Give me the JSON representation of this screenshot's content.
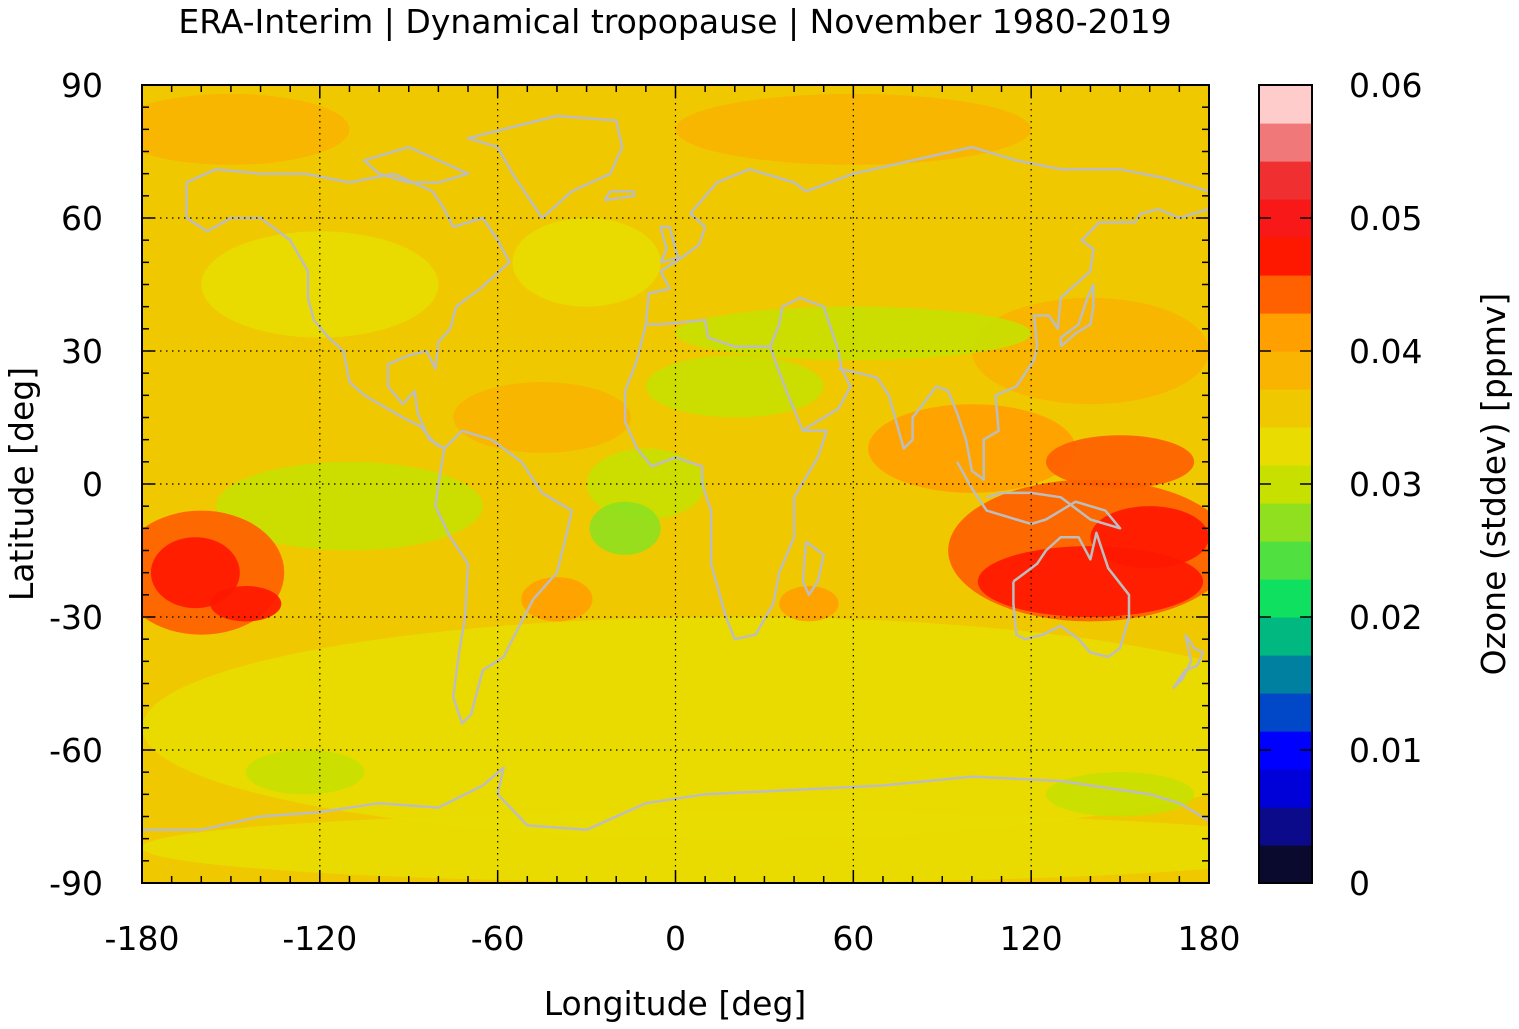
{
  "chart_data": {
    "type": "heatmap",
    "title": "ERA-Interim | Dynamical tropopause | November 1980-2019",
    "xlabel": "Longitude [deg]",
    "ylabel": "Latitude [deg]",
    "xlim": [
      -180,
      180
    ],
    "ylim": [
      -90,
      90
    ],
    "x_ticks": [
      "-180",
      "-120",
      "-60",
      "0",
      "60",
      "120",
      "180"
    ],
    "y_ticks": [
      "-90",
      "-60",
      "-30",
      "0",
      "30",
      "60",
      "90"
    ],
    "x_tick_values": [
      -180,
      -120,
      -60,
      0,
      60,
      120,
      180
    ],
    "y_tick_values": [
      -90,
      -60,
      -30,
      0,
      30,
      60,
      90
    ],
    "grid": true,
    "colorbar": {
      "label": "Ozone (stddev) [ppmv]",
      "range": [
        0,
        0.06
      ],
      "ticks": [
        "0",
        "0.01",
        "0.02",
        "0.03",
        "0.04",
        "0.05",
        "0.06"
      ],
      "tick_values": [
        0,
        0.01,
        0.02,
        0.03,
        0.04,
        0.05,
        0.06
      ],
      "colors": [
        "#0a0a2e",
        "#0a0a8a",
        "#0000d8",
        "#0000ff",
        "#0048c8",
        "#0080a0",
        "#00b880",
        "#10e060",
        "#50e040",
        "#90e020",
        "#c8e000",
        "#e8dc00",
        "#f0c800",
        "#f8b400",
        "#ffa000",
        "#ff6000",
        "#ff1800",
        "#f81818",
        "#f03030",
        "#f07878",
        "#ffcccc"
      ]
    },
    "field": {
      "background_value": 0.036,
      "regions": [
        {
          "lon": -162,
          "lat": -20,
          "rlon": 15,
          "rlat": 8,
          "value": 0.048
        },
        {
          "lon": -145,
          "lat": -27,
          "rlon": 12,
          "rlat": 4,
          "value": 0.047
        },
        {
          "lon": -160,
          "lat": -20,
          "rlon": 28,
          "rlat": 14,
          "value": 0.044
        },
        {
          "lon": 140,
          "lat": -22,
          "rlon": 38,
          "rlat": 8,
          "value": 0.048
        },
        {
          "lon": 160,
          "lat": -12,
          "rlon": 20,
          "rlat": 7,
          "value": 0.046
        },
        {
          "lon": 140,
          "lat": -15,
          "rlon": 48,
          "rlat": 16,
          "value": 0.044
        },
        {
          "lon": 150,
          "lat": 5,
          "rlon": 25,
          "rlat": 6,
          "value": 0.043
        },
        {
          "lon": 100,
          "lat": 8,
          "rlon": 35,
          "rlat": 10,
          "value": 0.04
        },
        {
          "lon": 140,
          "lat": 30,
          "rlon": 40,
          "rlat": 12,
          "value": 0.039
        },
        {
          "lon": -40,
          "lat": -26,
          "rlon": 12,
          "rlat": 5,
          "value": 0.041
        },
        {
          "lon": 45,
          "lat": -27,
          "rlon": 10,
          "rlat": 4,
          "value": 0.04
        },
        {
          "lon": -45,
          "lat": 15,
          "rlon": 30,
          "rlat": 8,
          "value": 0.039
        },
        {
          "lon": 60,
          "lat": 34,
          "rlon": 60,
          "rlat": 6,
          "value": 0.031
        },
        {
          "lon": 20,
          "lat": 22,
          "rlon": 30,
          "rlat": 7,
          "value": 0.031
        },
        {
          "lon": -17,
          "lat": -10,
          "rlon": 12,
          "rlat": 6,
          "value": 0.027
        },
        {
          "lon": -10,
          "lat": 0,
          "rlon": 20,
          "rlat": 8,
          "value": 0.031
        },
        {
          "lon": -110,
          "lat": -5,
          "rlon": 45,
          "rlat": 10,
          "value": 0.031
        },
        {
          "lon": -120,
          "lat": 45,
          "rlon": 40,
          "rlat": 12,
          "value": 0.033
        },
        {
          "lon": -30,
          "lat": 50,
          "rlon": 25,
          "rlat": 10,
          "value": 0.034
        },
        {
          "lon": 20,
          "lat": -55,
          "rlon": 200,
          "rlat": 25,
          "value": 0.033
        },
        {
          "lon": 20,
          "lat": -82,
          "rlon": 200,
          "rlat": 8,
          "value": 0.033
        },
        {
          "lon": -125,
          "lat": -65,
          "rlon": 20,
          "rlat": 5,
          "value": 0.03
        },
        {
          "lon": 150,
          "lat": -70,
          "rlon": 25,
          "rlat": 5,
          "value": 0.03
        },
        {
          "lon": 60,
          "lat": 80,
          "rlon": 60,
          "rlat": 8,
          "value": 0.038
        },
        {
          "lon": -150,
          "lat": 80,
          "rlon": 40,
          "rlat": 8,
          "value": 0.038
        }
      ]
    }
  }
}
